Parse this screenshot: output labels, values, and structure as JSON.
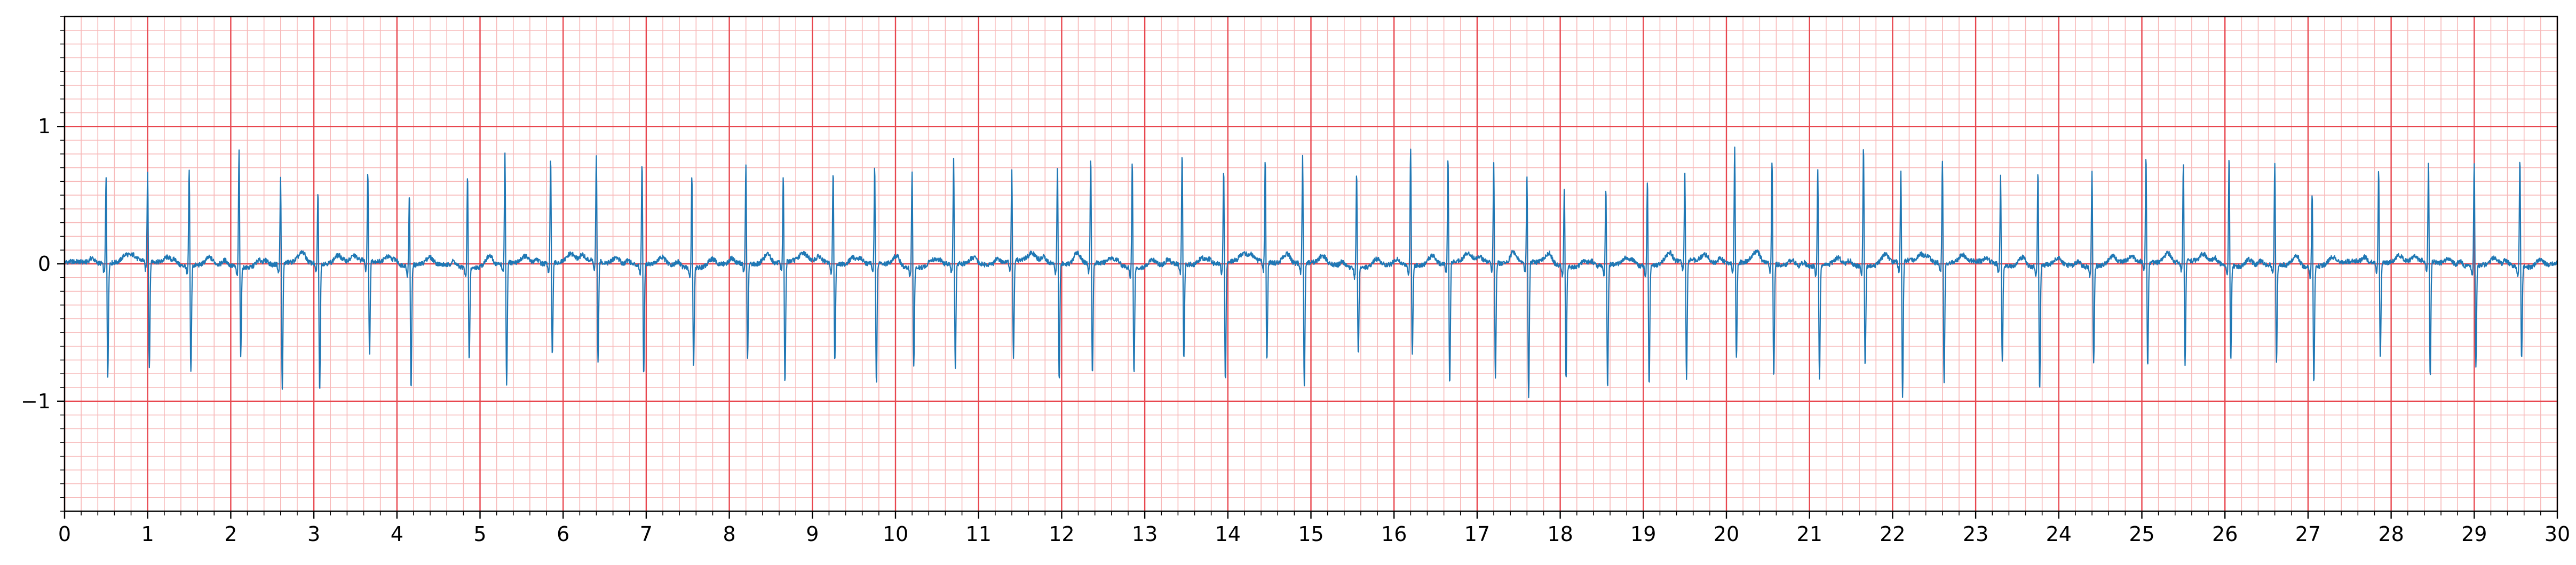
{
  "chart_data": {
    "type": "line",
    "title": "",
    "xlabel": "",
    "ylabel": "",
    "xlim": [
      0,
      30
    ],
    "ylim": [
      -1.8,
      1.8
    ],
    "x_ticks": [
      "0",
      "1",
      "2",
      "3",
      "4",
      "5",
      "6",
      "7",
      "8",
      "9",
      "10",
      "11",
      "12",
      "13",
      "14",
      "15",
      "16",
      "17",
      "18",
      "19",
      "20",
      "21",
      "22",
      "23",
      "24",
      "25",
      "26",
      "27",
      "28",
      "29",
      "30"
    ],
    "y_ticks": [
      "−1",
      "0",
      "1"
    ],
    "y_tick_values": [
      -1,
      0,
      1
    ],
    "grid": {
      "major_x": 1,
      "major_y": 1,
      "minor_x": 0.2,
      "minor_y": 0.1,
      "major_color": "#e8474f",
      "minor_color": "#f7b8b8"
    },
    "line_color": "#1f77b4",
    "beats": [
      [
        0.5,
        0.65,
        -0.82
      ],
      [
        1.0,
        0.68,
        -0.78
      ],
      [
        1.5,
        0.73,
        -0.78
      ],
      [
        2.1,
        0.88,
        -0.65
      ],
      [
        2.6,
        0.65,
        -0.93
      ],
      [
        3.05,
        0.56,
        -0.95
      ],
      [
        3.65,
        0.67,
        -0.69
      ],
      [
        4.15,
        0.55,
        -0.9
      ],
      [
        4.85,
        0.69,
        -0.68
      ],
      [
        5.3,
        0.83,
        -0.9
      ],
      [
        5.85,
        0.78,
        -0.67
      ],
      [
        6.4,
        0.78,
        -0.73
      ],
      [
        6.95,
        0.78,
        -0.81
      ],
      [
        7.55,
        0.71,
        -0.73
      ],
      [
        8.2,
        0.74,
        -0.71
      ],
      [
        8.65,
        0.65,
        -0.89
      ],
      [
        9.25,
        0.69,
        -0.71
      ],
      [
        9.75,
        0.73,
        -0.88
      ],
      [
        10.2,
        0.72,
        -0.72
      ],
      [
        10.7,
        0.78,
        -0.77
      ],
      [
        11.4,
        0.68,
        -0.7
      ],
      [
        11.95,
        0.73,
        -0.85
      ],
      [
        12.35,
        0.81,
        -0.82
      ],
      [
        12.85,
        0.8,
        -0.78
      ],
      [
        13.45,
        0.84,
        -0.7
      ],
      [
        13.95,
        0.72,
        -0.88
      ],
      [
        14.45,
        0.78,
        -0.72
      ],
      [
        14.9,
        0.8,
        -0.89
      ],
      [
        15.55,
        0.71,
        -0.64
      ],
      [
        16.2,
        0.88,
        -0.66
      ],
      [
        16.65,
        0.81,
        -0.9
      ],
      [
        17.2,
        0.76,
        -0.83
      ],
      [
        17.6,
        0.66,
        -0.99
      ],
      [
        18.05,
        0.62,
        -0.83
      ],
      [
        18.55,
        0.59,
        -0.9
      ],
      [
        19.05,
        0.65,
        -0.88
      ],
      [
        19.5,
        0.66,
        -0.86
      ],
      [
        20.1,
        0.86,
        -0.71
      ],
      [
        20.55,
        0.78,
        -0.84
      ],
      [
        21.1,
        0.73,
        -0.82
      ],
      [
        21.65,
        0.91,
        -0.73
      ],
      [
        22.1,
        0.69,
        -0.99
      ],
      [
        22.6,
        0.79,
        -0.88
      ],
      [
        23.3,
        0.67,
        -0.72
      ],
      [
        23.75,
        0.73,
        -0.93
      ],
      [
        24.4,
        0.71,
        -0.72
      ],
      [
        25.05,
        0.79,
        -0.77
      ],
      [
        25.5,
        0.74,
        -0.75
      ],
      [
        26.05,
        0.82,
        -0.71
      ],
      [
        26.6,
        0.78,
        -0.72
      ],
      [
        27.05,
        0.57,
        -0.85
      ],
      [
        27.85,
        0.7,
        -0.7
      ],
      [
        28.45,
        0.75,
        -0.84
      ],
      [
        29.0,
        0.78,
        -0.74
      ],
      [
        29.55,
        0.82,
        -0.68
      ]
    ]
  }
}
